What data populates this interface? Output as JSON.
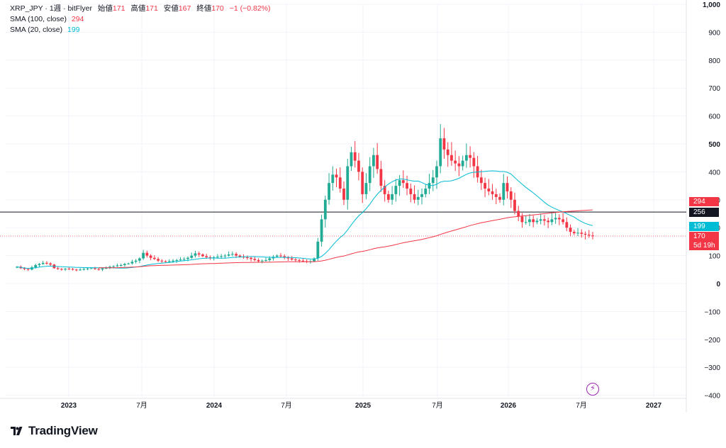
{
  "legend": {
    "symbol": "XRP_JPY",
    "interval": "1週",
    "exchange": "bitFlyer",
    "open_label": "始値",
    "open": "171",
    "high_label": "高値",
    "high": "171",
    "low_label": "安値",
    "low": "167",
    "close_label": "終値",
    "close": "170",
    "change": "−1 (−0.82%)",
    "sma100_label": "SMA (100, close)",
    "sma100_value": "294",
    "sma20_label": "SMA (20, close)",
    "sma20_value": "199"
  },
  "price_tags": {
    "sma100": "294",
    "hline": "256",
    "sma20": "199",
    "last": "170",
    "countdown": "5d 19h"
  },
  "brand": "TradingView",
  "colors": {
    "up": "#22ab94",
    "down": "#f23645",
    "sma100": "#f23645",
    "sma20": "#00bcd4",
    "hline": "#131722"
  },
  "chart_data": {
    "type": "candlestick",
    "y_ticks": [
      "1,000",
      "900",
      "800",
      "700",
      "600",
      "500",
      "400",
      "300",
      "200",
      "100",
      "0",
      "−100",
      "−200",
      "−300",
      "−400"
    ],
    "x_ticks": [
      "2023",
      "7月",
      "2024",
      "7月",
      "2025",
      "7月",
      "2026",
      "7月",
      "2027"
    ],
    "ylim": [
      -400,
      1000
    ],
    "horizontal_line": 256,
    "last_price": 170,
    "weekly_closes": [
      60,
      55,
      52,
      50,
      58,
      66,
      70,
      74,
      72,
      68,
      55,
      52,
      50,
      53,
      52,
      50,
      48,
      50,
      52,
      54,
      55,
      52,
      50,
      54,
      56,
      60,
      62,
      65,
      66,
      70,
      72,
      78,
      82,
      90,
      110,
      100,
      92,
      88,
      82,
      80,
      78,
      80,
      82,
      84,
      86,
      88,
      92,
      100,
      108,
      104,
      98,
      94,
      92,
      94,
      96,
      98,
      100,
      104,
      106,
      100,
      96,
      94,
      92,
      88,
      84,
      80,
      82,
      84,
      90,
      96,
      100,
      98,
      94,
      90,
      86,
      84,
      82,
      80,
      78,
      80,
      90,
      150,
      230,
      300,
      360,
      390,
      380,
      340,
      300,
      420,
      470,
      440,
      400,
      320,
      360,
      420,
      460,
      410,
      350,
      320,
      300,
      320,
      350,
      370,
      360,
      340,
      320,
      300,
      310,
      320,
      340,
      360,
      380,
      420,
      520,
      480,
      460,
      440,
      430,
      420,
      440,
      460,
      450,
      420,
      380,
      360,
      340,
      330,
      320,
      310,
      300,
      360,
      330,
      300,
      260,
      240,
      220,
      220,
      230,
      220,
      225,
      230,
      225,
      220,
      230,
      235,
      230,
      220,
      200,
      185,
      180,
      182,
      178,
      175,
      172,
      170
    ]
  }
}
